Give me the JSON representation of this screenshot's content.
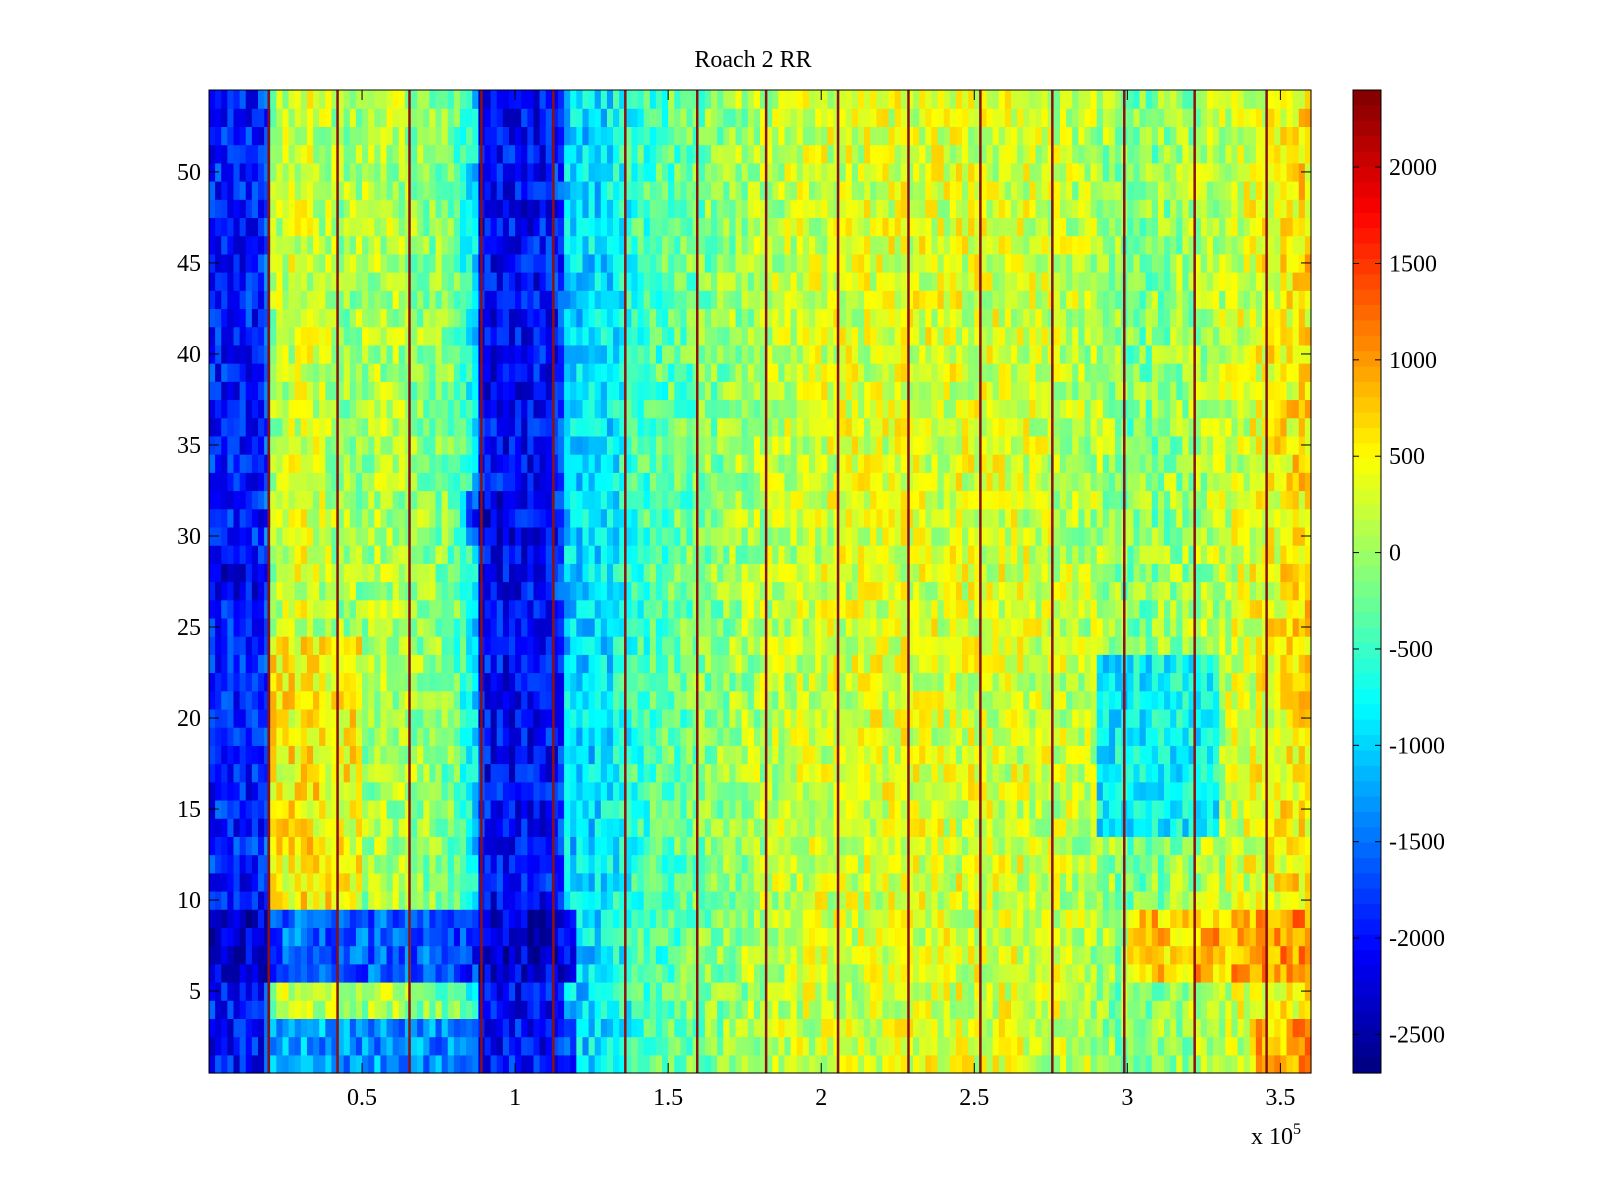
{
  "chart_data": {
    "type": "heatmap",
    "title": "Roach 2 RR",
    "xlabel": "",
    "ylabel": "",
    "x_multiplier_label": "x 10",
    "x_multiplier_exponent": "5",
    "xlim": [
      0,
      360000
    ],
    "ylim": [
      0.5,
      54.5
    ],
    "rows": 54,
    "x_ticks": [
      {
        "value": 50000,
        "label": "0.5"
      },
      {
        "value": 100000,
        "label": "1"
      },
      {
        "value": 150000,
        "label": "1.5"
      },
      {
        "value": 200000,
        "label": "2"
      },
      {
        "value": 250000,
        "label": "2.5"
      },
      {
        "value": 300000,
        "label": "3"
      },
      {
        "value": 350000,
        "label": "3.5"
      }
    ],
    "y_ticks": [
      {
        "value": 5,
        "label": "5"
      },
      {
        "value": 10,
        "label": "10"
      },
      {
        "value": 15,
        "label": "15"
      },
      {
        "value": 20,
        "label": "20"
      },
      {
        "value": 25,
        "label": "25"
      },
      {
        "value": 30,
        "label": "30"
      },
      {
        "value": 35,
        "label": "35"
      },
      {
        "value": 40,
        "label": "40"
      },
      {
        "value": 45,
        "label": "45"
      },
      {
        "value": 50,
        "label": "50"
      }
    ],
    "colorbar": {
      "colormap": "jet",
      "clim": [
        -2700,
        2400
      ],
      "ticks": [
        {
          "value": 2000,
          "label": "2000"
        },
        {
          "value": 1500,
          "label": "1500"
        },
        {
          "value": 1000,
          "label": "1000"
        },
        {
          "value": 500,
          "label": "500"
        },
        {
          "value": 0,
          "label": "0"
        },
        {
          "value": -500,
          "label": "-500"
        },
        {
          "value": -1000,
          "label": "-1000"
        },
        {
          "value": -1500,
          "label": "-1500"
        },
        {
          "value": -2000,
          "label": "-2000"
        },
        {
          "value": -2500,
          "label": "-2500"
        }
      ]
    },
    "column_profile": [
      {
        "x": 0,
        "value": -1800
      },
      {
        "x": 10000,
        "value": -1800
      },
      {
        "x": 19000,
        "value": -1700
      },
      {
        "x": 20000,
        "value": 0
      },
      {
        "x": 30000,
        "value": 300
      },
      {
        "x": 45000,
        "value": 0
      },
      {
        "x": 60000,
        "value": 100
      },
      {
        "x": 80000,
        "value": -200
      },
      {
        "x": 87000,
        "value": -900
      },
      {
        "x": 89000,
        "value": -1900
      },
      {
        "x": 105000,
        "value": -2000
      },
      {
        "x": 112000,
        "value": -1700
      },
      {
        "x": 116000,
        "value": -1000
      },
      {
        "x": 130000,
        "value": -900
      },
      {
        "x": 140000,
        "value": -500
      },
      {
        "x": 160000,
        "value": -200
      },
      {
        "x": 180000,
        "value": 100
      },
      {
        "x": 200000,
        "value": 250
      },
      {
        "x": 225000,
        "value": 300
      },
      {
        "x": 250000,
        "value": 300
      },
      {
        "x": 270000,
        "value": 250
      },
      {
        "x": 290000,
        "value": 100
      },
      {
        "x": 300000,
        "value": -200
      },
      {
        "x": 320000,
        "value": 0
      },
      {
        "x": 340000,
        "value": 300
      },
      {
        "x": 350000,
        "value": 500
      },
      {
        "x": 360000,
        "value": 600
      }
    ],
    "spike_lines_x": [
      19500,
      42000,
      65500,
      89000,
      112500,
      136000,
      159500,
      182000,
      205500,
      228500,
      252000,
      275500,
      299000,
      322000,
      345500
    ],
    "regional_features": [
      {
        "x_range": [
          88000,
          116000
        ],
        "y_range": [
          0.5,
          54.5
        ],
        "value": -2100
      },
      {
        "x_range": [
          0,
          19000
        ],
        "y_range": [
          0.5,
          54.5
        ],
        "value": -2000
      },
      {
        "x_range": [
          0,
          120000
        ],
        "y_range": [
          6,
          10
        ],
        "value": -2400
      },
      {
        "x_range": [
          0,
          120000
        ],
        "y_range": [
          0.5,
          3.5
        ],
        "value": -2000
      },
      {
        "x_range": [
          290000,
          330000
        ],
        "y_range": [
          14,
          24
        ],
        "value": -1200
      },
      {
        "x_range": [
          300000,
          360000
        ],
        "y_range": [
          6,
          10
        ],
        "value": 1200
      },
      {
        "x_range": [
          340000,
          360000
        ],
        "y_range": [
          0.5,
          4
        ],
        "value": 1100
      },
      {
        "x_range": [
          20000,
          50000
        ],
        "y_range": [
          10,
          25
        ],
        "value": 700
      },
      {
        "x_range": [
          85000,
          100000
        ],
        "y_range": [
          30,
          33
        ],
        "value": -2300
      },
      {
        "x_range": [
          0,
          20000
        ],
        "y_range": [
          27,
          29
        ],
        "value": -2300
      }
    ]
  }
}
